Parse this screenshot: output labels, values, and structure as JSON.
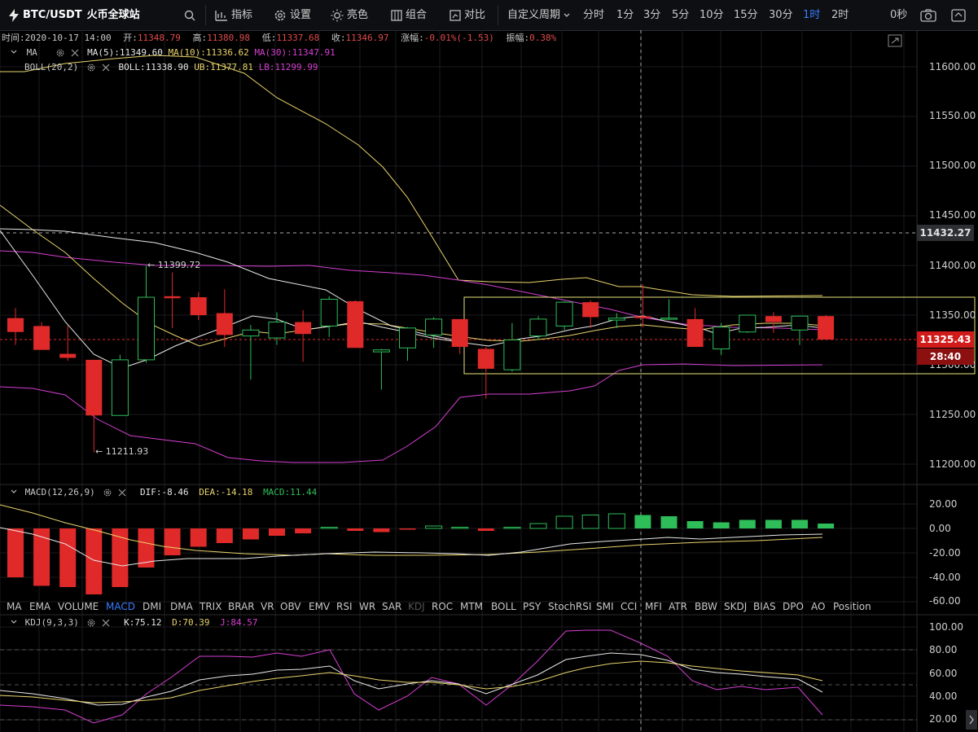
{
  "header": {
    "pair": "BTC/USDT",
    "exchange": "火币全球站",
    "tools": [
      "指标",
      "设置",
      "亮色",
      "组合",
      "对比"
    ],
    "custom_period": "自定义周期",
    "periods": [
      "分时",
      "1分",
      "3分",
      "5分",
      "10分",
      "15分",
      "30分",
      "1时",
      "2时"
    ],
    "active_period": "1时",
    "countdown": "0秒"
  },
  "info_bar": {
    "time_label": "时间:",
    "time": "2020-10-17 14:00",
    "open_label": "开:",
    "open": "11348.79",
    "high_label": "高:",
    "high": "11380.98",
    "low_label": "低:",
    "low": "11337.68",
    "close_label": "收:",
    "close": "11346.97",
    "change_label": "涨幅:",
    "change": "-0.01%(-1.53)",
    "amp_label": "振幅:",
    "amp": "0.38%"
  },
  "ma_legend": {
    "name": "MA",
    "ma5": "MA(5):11349.60",
    "ma10": "MA(10):11336.62",
    "ma30": "MA(30):11347.91"
  },
  "boll_legend": {
    "name": "BOLL(20,2)",
    "boll": "BOLL:11338.90",
    "ub": "UB:11377.81",
    "lb": "LB:11299.99"
  },
  "macd_legend": {
    "name": "MACD(12,26,9)",
    "dif": "DIF:-8.46",
    "dea": "DEA:-14.18",
    "macd": "MACD:11.44"
  },
  "kdj_legend": {
    "name": "KDJ(9,3,3)",
    "k": "K:75.12",
    "d": "D:70.39",
    "j": "J:84.57"
  },
  "price_axis": [
    "11600.00",
    "11550.00",
    "11500.00",
    "11450.00",
    "11400.00",
    "11350.00",
    "11300.00",
    "11250.00",
    "11200.00"
  ],
  "crosshair_price": "11432.27",
  "last_price": "11325.43",
  "candle_countdown": "28:40",
  "macd_axis": [
    "20.00",
    "0.00",
    "-20.00",
    "-40.00",
    "-60.00"
  ],
  "kdj_axis": [
    "100.00",
    "80.00",
    "60.00",
    "40.00",
    "20.00"
  ],
  "annotations": {
    "high": "← 11399.72",
    "low": "← 11211.93"
  },
  "indicators": [
    "MA",
    "EMA",
    "VOLUME",
    "MACD",
    "DMI",
    "DMA",
    "TRIX",
    "BRAR",
    "VR",
    "OBV",
    "EMV",
    "RSI",
    "WR",
    "SAR",
    "KDJ",
    "ROC",
    "MTM",
    "BOLL",
    "PSY",
    "StochRSI",
    "SMI",
    "CCI",
    "MFI",
    "ATR",
    "BBW",
    "SKDJ",
    "BIAS",
    "DPO",
    "AO",
    "Position"
  ],
  "active_indicator": "MACD",
  "disabled_indicator": "KDJ",
  "colors": {
    "up": "#2ebd59",
    "down": "#e02a2a",
    "ma5": "#ffffff",
    "ma10": "#e8d36b",
    "ma30": "#d63fd2",
    "accent": "#3b7cff",
    "selection": "#e8e37a"
  },
  "chart_data": {
    "type": "candlestick",
    "x_axis": "hourly candles (1时)",
    "ylim": [
      11180,
      11640
    ],
    "candles": [
      {
        "o": 11347,
        "h": 11357,
        "l": 11320,
        "c": 11333
      },
      {
        "o": 11339,
        "h": 11343,
        "l": 11318,
        "c": 11315
      },
      {
        "o": 11311,
        "h": 11340,
        "l": 11304,
        "c": 11307
      },
      {
        "o": 11305,
        "h": 11305,
        "l": 11212,
        "c": 11249
      },
      {
        "o": 11249,
        "h": 11310,
        "l": 11249,
        "c": 11305
      },
      {
        "o": 11305,
        "h": 11399.72,
        "l": 11302,
        "c": 11368
      },
      {
        "o": 11369,
        "h": 11393,
        "l": 11337,
        "c": 11367
      },
      {
        "o": 11368,
        "h": 11373,
        "l": 11345,
        "c": 11350
      },
      {
        "o": 11352,
        "h": 11376,
        "l": 11318,
        "c": 11330
      },
      {
        "o": 11329,
        "h": 11340,
        "l": 11285,
        "c": 11335
      },
      {
        "o": 11327,
        "h": 11353,
        "l": 11320,
        "c": 11343
      },
      {
        "o": 11343,
        "h": 11355,
        "l": 11303,
        "c": 11331
      },
      {
        "o": 11339,
        "h": 11369,
        "l": 11328,
        "c": 11366
      },
      {
        "o": 11364,
        "h": 11365,
        "l": 11318,
        "c": 11317
      },
      {
        "o": 11313,
        "h": 11316,
        "l": 11275,
        "c": 11315
      },
      {
        "o": 11317,
        "h": 11338,
        "l": 11304,
        "c": 11337
      },
      {
        "o": 11330,
        "h": 11348,
        "l": 11317,
        "c": 11346
      },
      {
        "o": 11346,
        "h": 11346,
        "l": 11311,
        "c": 11318
      },
      {
        "o": 11316,
        "h": 11318,
        "l": 11266,
        "c": 11296
      },
      {
        "o": 11295,
        "h": 11342,
        "l": 11293,
        "c": 11325
      },
      {
        "o": 11329,
        "h": 11349,
        "l": 11325,
        "c": 11346
      },
      {
        "o": 11339,
        "h": 11364,
        "l": 11335,
        "c": 11363
      },
      {
        "o": 11363,
        "h": 11365,
        "l": 11337,
        "c": 11348
      },
      {
        "o": 11345,
        "h": 11352,
        "l": 11337,
        "c": 11347
      },
      {
        "o": 11348.79,
        "h": 11380.98,
        "l": 11337.68,
        "c": 11346.97
      },
      {
        "o": 11347,
        "h": 11366,
        "l": 11345,
        "c": 11347
      },
      {
        "o": 11346,
        "h": 11357,
        "l": 11318,
        "c": 11318
      },
      {
        "o": 11316,
        "h": 11342,
        "l": 11310,
        "c": 11338
      },
      {
        "o": 11333,
        "h": 11350,
        "l": 11332,
        "c": 11350
      },
      {
        "o": 11349,
        "h": 11353,
        "l": 11332,
        "c": 11343
      },
      {
        "o": 11335,
        "h": 11349,
        "l": 11320,
        "c": 11349
      },
      {
        "o": 11349,
        "h": 11350,
        "l": 11325,
        "c": 11325.43
      }
    ],
    "macd_hist": [
      -40,
      -47,
      -48,
      -54,
      -48,
      -32,
      -22,
      -15,
      -12,
      -9,
      -6,
      -4,
      1,
      -2,
      -3,
      -1,
      2,
      1,
      -2,
      1,
      4,
      10,
      11,
      12,
      11,
      10,
      6,
      5,
      7,
      7,
      7,
      4
    ]
  }
}
